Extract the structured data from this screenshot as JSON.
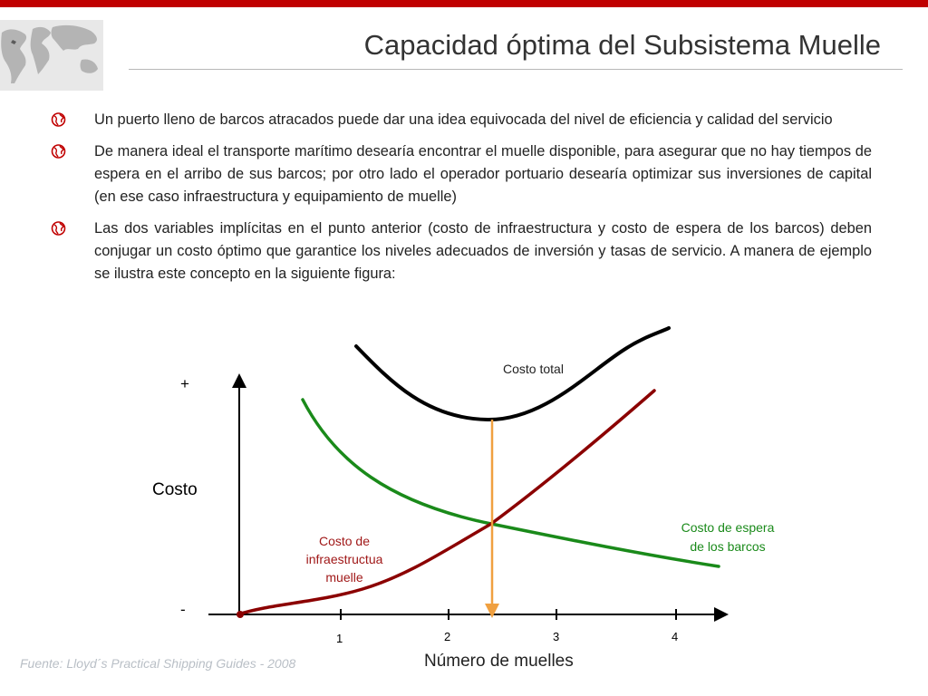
{
  "colors": {
    "accent_bar": "#c00000",
    "total_cost": "#000000",
    "infrastructure_cost": "#8b0000",
    "waiting_cost": "#1a8a1a",
    "optimum_arrow": "#f0a040",
    "bullet_icon": "#c00000"
  },
  "header": {
    "title": "Capacidad óptima del Subsistema Muelle",
    "logo_icon": "world-map-icon"
  },
  "bullets": [
    {
      "icon": "globe-icon",
      "text": "Un puerto lleno de barcos atracados puede dar una idea equivocada del nivel de eficiencia y calidad del servicio"
    },
    {
      "icon": "globe-icon",
      "text": "De manera ideal el transporte marítimo desearía encontrar el muelle disponible, para asegurar que no hay tiempos de espera en el arribo de sus barcos; por otro lado el operador portuario desearía optimizar sus inversiones de capital (en ese caso infraestructura y equipamiento de muelle)"
    },
    {
      "icon": "globe-icon",
      "text": "Las dos variables implícitas en el punto anterior (costo de infraestructura y costo de espera de los barcos) deben conjugar un costo óptimo que garantice los niveles adecuados de inversión y tasas de servicio. A manera de ejemplo se ilustra este concepto en la siguiente figura:"
    }
  ],
  "figure": {
    "y_axis_label": "Costo",
    "y_plus": "+",
    "y_minus": "-",
    "x_axis_label": "Número de muelles",
    "x_ticks": [
      "1",
      "2",
      "3",
      "4"
    ],
    "curve_total_label": "Costo total",
    "curve_infra_label_line1": "Costo de",
    "curve_infra_label_line2": "infraestructua",
    "curve_infra_label_line3": "muelle",
    "curve_wait_label_line1": "Costo de espera",
    "curve_wait_label_line2": "de los barcos"
  },
  "footer": {
    "source": "Fuente: Lloyd´s Practical Shipping Guides - 2008"
  }
}
